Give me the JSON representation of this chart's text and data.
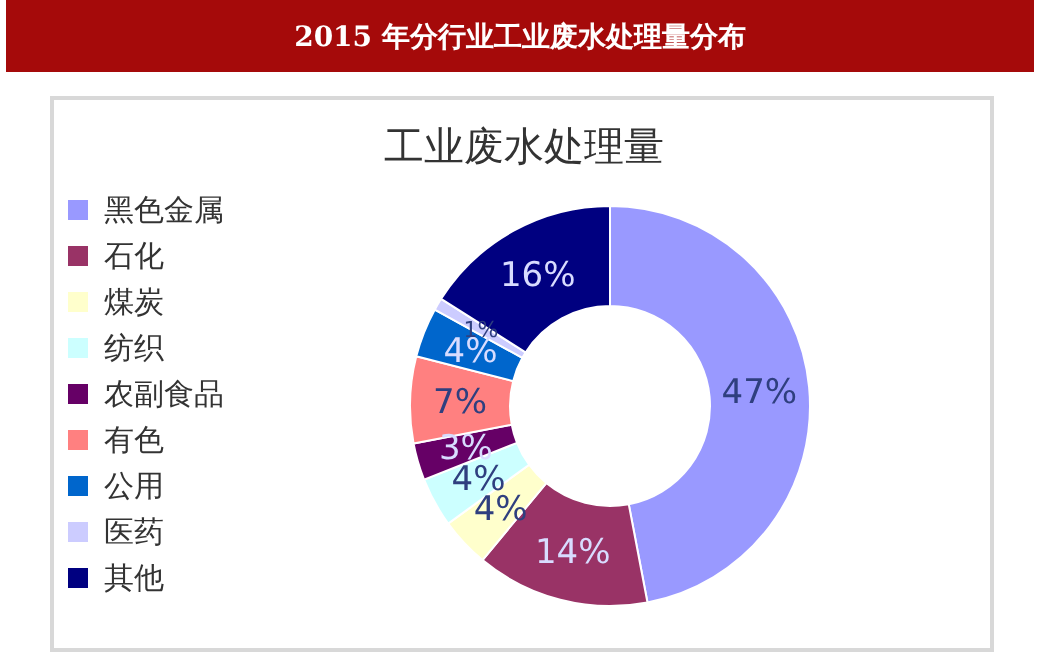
{
  "chart_data": {
    "type": "donut",
    "title": "2015 年分行业工业废水处理量分布",
    "subtitle": "工业废水处理量",
    "categories": [
      "黑色金属",
      "石化",
      "煤炭",
      "纺织",
      "农副食品",
      "有色",
      "公用",
      "医药",
      "其他"
    ],
    "values": [
      47,
      14,
      4,
      4,
      3,
      7,
      4,
      1,
      16
    ],
    "colors": [
      "#9999ff",
      "#993366",
      "#ffffcc",
      "#ccffff",
      "#660066",
      "#ff8080",
      "#0066cc",
      "#ccccff",
      "#000080"
    ],
    "value_labels": [
      "47%",
      "14%",
      "4%",
      "4%",
      "3%",
      "7%",
      "4%",
      "1%",
      "16%"
    ],
    "legend": "left"
  }
}
